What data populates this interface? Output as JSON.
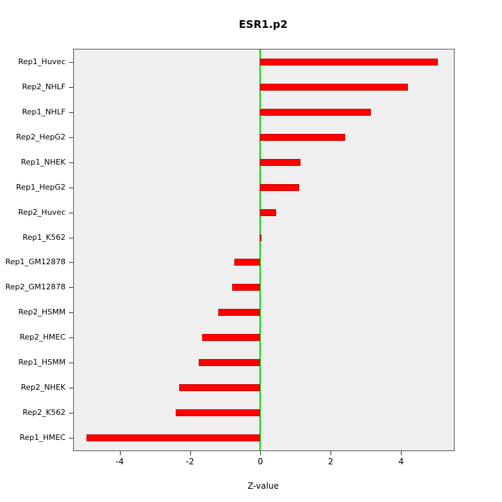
{
  "chart_data": {
    "type": "bar",
    "orientation": "horizontal",
    "title": "ESR1.p2",
    "xlabel": "Z-value",
    "categories": [
      "Rep1_Huvec",
      "Rep2_NHLF",
      "Rep1_NHLF",
      "Rep2_HepG2",
      "Rep1_NHEK",
      "Rep1_HepG2",
      "Rep2_Huvec",
      "Rep1_K562",
      "Rep1_GM12878",
      "Rep2_GM12878",
      "Rep2_HSMM",
      "Rep2_HMEC",
      "Rep1_HSMM",
      "Rep2_NHEK",
      "Rep2_K562",
      "Rep1_HMEC"
    ],
    "values": [
      5.05,
      4.2,
      3.15,
      2.4,
      1.15,
      1.1,
      0.45,
      0.03,
      -0.75,
      -0.8,
      -1.2,
      -1.65,
      -1.75,
      -2.3,
      -2.4,
      -4.95
    ],
    "xlim": [
      -5.3,
      5.5
    ],
    "xticks": [
      -4,
      -2,
      0,
      2,
      4
    ],
    "bar_color": "#FF0000",
    "bar_border_color": "#CC0000",
    "zero_line_color": "#00E000",
    "panel_bg": "#EFEFEF",
    "legend": "none",
    "grid": "off"
  }
}
